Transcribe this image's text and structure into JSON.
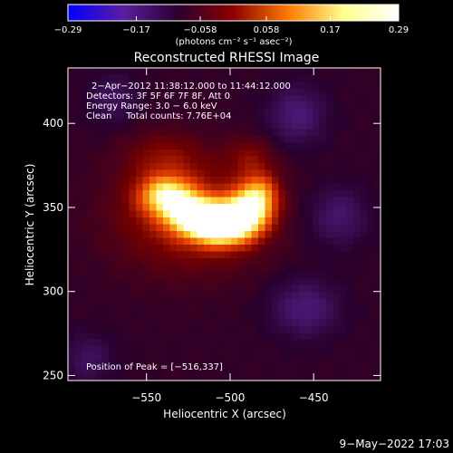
{
  "chart_data": {
    "type": "heatmap",
    "title": "Reconstructed RHESSI Image",
    "xlabel": "Heliocentric X (arcsec)",
    "ylabel": "Heliocentric Y (arcsec)",
    "xlim": [
      -597,
      -410
    ],
    "ylim": [
      247,
      433
    ],
    "x_ticks": [
      -550,
      -500,
      -450
    ],
    "x_tick_labels": [
      "−550",
      "−500",
      "−450"
    ],
    "y_ticks": [
      250,
      300,
      350,
      400
    ],
    "y_tick_labels": [
      "250",
      "300",
      "350",
      "400"
    ],
    "colorbar": {
      "min": -0.29,
      "max": 0.29,
      "ticks": [
        -0.29,
        -0.17,
        -0.058,
        0.058,
        0.17,
        0.29
      ],
      "tick_labels": [
        "−0.29",
        "−0.17",
        "−0.058",
        "0.058",
        "0.17",
        "0.29"
      ],
      "units_label": "(photons cm⁻² s⁻¹ asec⁻²)",
      "colors": [
        "#0000ff",
        "#5a1ea0",
        "#2a0030",
        "#8c0000",
        "#ff7a00",
        "#ffff90",
        "#ffffff"
      ]
    },
    "annotations": [
      "2−Apr−2012 11:38:12.000 to 11:44:12.000",
      "Detectors: 3F 5F 6F 7F 8F, Att 0",
      "Energy Range: 3.0 − 6.0 keV",
      "Clean     Total counts: 7.76E+04"
    ],
    "peak_label": "Position of Peak = [−516,337]",
    "peak_position": [
      -516,
      337
    ],
    "source_components": [
      {
        "x": -538,
        "y": 357,
        "sx": 11,
        "sy": 8,
        "amp": 0.22
      },
      {
        "x": -522,
        "y": 345,
        "sx": 11,
        "sy": 8,
        "amp": 0.25
      },
      {
        "x": -506,
        "y": 339,
        "sx": 11,
        "sy": 8,
        "amp": 0.27
      },
      {
        "x": -492,
        "y": 345,
        "sx": 10,
        "sy": 9,
        "amp": 0.25
      },
      {
        "x": -483,
        "y": 357,
        "sx": 8,
        "sy": 9,
        "amp": 0.18
      },
      {
        "x": -525,
        "y": 345,
        "sx": 30,
        "sy": 22,
        "amp": 0.09
      },
      {
        "x": -540,
        "y": 380,
        "sx": 16,
        "sy": 10,
        "amp": 0.05
      },
      {
        "x": -488,
        "y": 380,
        "sx": 10,
        "sy": 8,
        "amp": 0.05
      },
      {
        "x": -460,
        "y": 405,
        "sx": 12,
        "sy": 12,
        "amp": -0.07
      },
      {
        "x": -435,
        "y": 345,
        "sx": 12,
        "sy": 12,
        "amp": -0.06
      },
      {
        "x": -455,
        "y": 290,
        "sx": 14,
        "sy": 12,
        "amp": -0.07
      },
      {
        "x": -570,
        "y": 415,
        "sx": 10,
        "sy": 10,
        "amp": -0.05
      },
      {
        "x": -585,
        "y": 260,
        "sx": 10,
        "sy": 10,
        "amp": -0.05
      }
    ]
  },
  "footer": {
    "timestamp": "9−May−2022 17:03"
  }
}
